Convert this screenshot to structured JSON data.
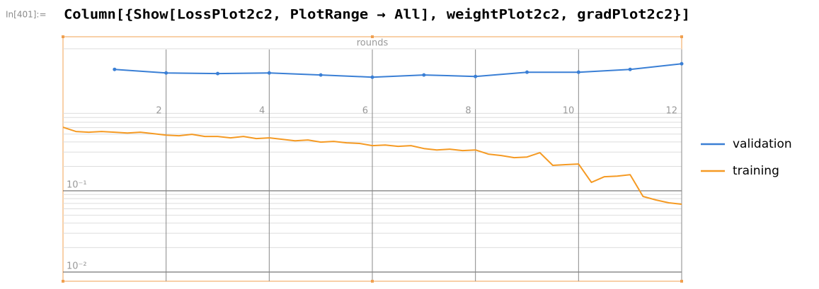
{
  "cell": {
    "label": "In[401]:=",
    "code": "Column[{Show[LossPlot2c2, PlotRange → All], weightPlot2c2, gradPlot2c2}]"
  },
  "chart_data": {
    "type": "line",
    "x_label": "rounds",
    "xlim": [
      0,
      12
    ],
    "xticks": [
      2,
      4,
      6,
      8,
      10,
      12
    ],
    "ylog": true,
    "ylim": [
      0.0077,
      7.9
    ],
    "yticks": [
      {
        "value": 0.01,
        "label": "10⁻²"
      },
      {
        "value": 0.1,
        "label": "10⁻¹"
      }
    ],
    "minor_yticks": [
      0.02,
      0.03,
      0.04,
      0.05,
      0.06,
      0.07,
      0.08,
      0.09,
      0.2,
      0.3,
      0.4,
      0.5,
      0.6,
      0.7,
      0.8,
      0.9
    ],
    "grid": true,
    "legend": "right",
    "series": [
      {
        "name": "validation",
        "color": "#3a7fd5",
        "markers": true,
        "x": [
          1,
          2,
          3,
          4,
          5,
          6,
          7,
          8,
          9,
          10,
          11,
          12
        ],
        "values": [
          3.13,
          2.83,
          2.78,
          2.83,
          2.67,
          2.51,
          2.67,
          2.56,
          2.89,
          2.89,
          3.13,
          3.67
        ]
      },
      {
        "name": "training",
        "color": "#f59a23",
        "markers": false,
        "x": [
          0,
          0.25,
          0.5,
          0.75,
          1,
          1.25,
          1.5,
          1.75,
          2,
          2.25,
          2.5,
          2.75,
          3,
          3.25,
          3.5,
          3.75,
          4,
          4.25,
          4.5,
          4.75,
          5,
          5.25,
          5.5,
          5.75,
          6,
          6.25,
          6.5,
          6.75,
          7,
          7.25,
          7.5,
          7.75,
          8,
          8.25,
          8.5,
          8.75,
          9,
          9.25,
          9.5,
          9.75,
          10,
          10.25,
          10.5,
          10.75,
          11,
          11.25,
          11.5,
          11.75,
          12
        ],
        "values": [
          0.606,
          0.538,
          0.527,
          0.538,
          0.527,
          0.516,
          0.527,
          0.506,
          0.486,
          0.477,
          0.496,
          0.467,
          0.467,
          0.449,
          0.467,
          0.44,
          0.449,
          0.431,
          0.414,
          0.423,
          0.398,
          0.406,
          0.39,
          0.383,
          0.36,
          0.367,
          0.353,
          0.36,
          0.332,
          0.319,
          0.326,
          0.313,
          0.319,
          0.283,
          0.272,
          0.256,
          0.261,
          0.295,
          0.206,
          0.21,
          0.214,
          0.127,
          0.149,
          0.152,
          0.158,
          0.0852,
          0.0771,
          0.0712,
          0.0684
        ]
      }
    ]
  }
}
